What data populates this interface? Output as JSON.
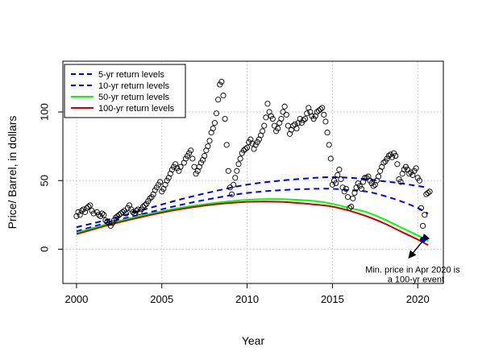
{
  "chart_data": {
    "type": "scatter",
    "title": "",
    "xlabel": "Year",
    "ylabel": "Price/ Barrel, in dollars",
    "xlim": [
      1999.2,
      2021.5
    ],
    "ylim": [
      -25,
      137
    ],
    "x_ticks": [
      2000,
      2005,
      2010,
      2015,
      2020
    ],
    "y_ticks": [
      0,
      50,
      100
    ],
    "grid": true,
    "legend_position": "top-left",
    "legend": [
      {
        "label": "5-yr return levels",
        "color": "#0000cc",
        "style": "dashed"
      },
      {
        "label": "10-yr return levels",
        "color": "#0000ff",
        "style": "dashed"
      },
      {
        "label": "50-yr return levels",
        "color": "#00ff00",
        "style": "solid"
      },
      {
        "label": "100-yr return levels",
        "color": "#cc0000",
        "style": "solid"
      }
    ],
    "points": [
      [
        2000.0,
        24
      ],
      [
        2000.1,
        27
      ],
      [
        2000.2,
        25
      ],
      [
        2000.3,
        28
      ],
      [
        2000.4,
        29
      ],
      [
        2000.5,
        27
      ],
      [
        2000.6,
        30
      ],
      [
        2000.7,
        31
      ],
      [
        2000.8,
        32
      ],
      [
        2000.9,
        28
      ],
      [
        2001.0,
        26
      ],
      [
        2001.2,
        27
      ],
      [
        2001.3,
        25
      ],
      [
        2001.4,
        24
      ],
      [
        2001.5,
        26
      ],
      [
        2001.6,
        25
      ],
      [
        2001.7,
        21
      ],
      [
        2001.8,
        20
      ],
      [
        2001.9,
        19
      ],
      [
        2002.0,
        17
      ],
      [
        2002.1,
        19
      ],
      [
        2002.2,
        21
      ],
      [
        2002.3,
        23
      ],
      [
        2002.4,
        24
      ],
      [
        2002.5,
        25
      ],
      [
        2002.6,
        26
      ],
      [
        2002.7,
        27
      ],
      [
        2002.8,
        28
      ],
      [
        2002.9,
        26
      ],
      [
        2003.0,
        30
      ],
      [
        2003.1,
        32
      ],
      [
        2003.2,
        29
      ],
      [
        2003.3,
        27
      ],
      [
        2003.4,
        26
      ],
      [
        2003.5,
        28
      ],
      [
        2003.6,
        29
      ],
      [
        2003.7,
        27
      ],
      [
        2003.8,
        29
      ],
      [
        2003.9,
        31
      ],
      [
        2004.0,
        32
      ],
      [
        2004.1,
        33
      ],
      [
        2004.2,
        35
      ],
      [
        2004.3,
        37
      ],
      [
        2004.4,
        38
      ],
      [
        2004.5,
        40
      ],
      [
        2004.6,
        43
      ],
      [
        2004.7,
        45
      ],
      [
        2004.8,
        47
      ],
      [
        2004.9,
        49
      ],
      [
        2005.0,
        42
      ],
      [
        2005.1,
        44
      ],
      [
        2005.2,
        47
      ],
      [
        2005.3,
        50
      ],
      [
        2005.4,
        52
      ],
      [
        2005.5,
        55
      ],
      [
        2005.6,
        58
      ],
      [
        2005.7,
        60
      ],
      [
        2005.8,
        62
      ],
      [
        2005.9,
        59
      ],
      [
        2006.0,
        57
      ],
      [
        2006.1,
        60
      ],
      [
        2006.3,
        63
      ],
      [
        2006.4,
        66
      ],
      [
        2006.5,
        68
      ],
      [
        2006.6,
        70
      ],
      [
        2006.7,
        72
      ],
      [
        2006.8,
        66
      ],
      [
        2006.9,
        60
      ],
      [
        2007.0,
        55
      ],
      [
        2007.1,
        57
      ],
      [
        2007.2,
        60
      ],
      [
        2007.3,
        63
      ],
      [
        2007.4,
        65
      ],
      [
        2007.5,
        68
      ],
      [
        2007.6,
        72
      ],
      [
        2007.7,
        75
      ],
      [
        2007.8,
        79
      ],
      [
        2007.9,
        85
      ],
      [
        2008.0,
        88
      ],
      [
        2008.1,
        92
      ],
      [
        2008.2,
        99
      ],
      [
        2008.3,
        109
      ],
      [
        2008.4,
        120
      ],
      [
        2008.5,
        122
      ],
      [
        2008.6,
        112
      ],
      [
        2008.7,
        95
      ],
      [
        2008.8,
        76
      ],
      [
        2008.9,
        57
      ],
      [
        2009.0,
        45
      ],
      [
        2009.1,
        40
      ],
      [
        2009.2,
        47
      ],
      [
        2009.3,
        52
      ],
      [
        2009.4,
        57
      ],
      [
        2009.5,
        62
      ],
      [
        2009.6,
        66
      ],
      [
        2009.7,
        70
      ],
      [
        2009.8,
        72
      ],
      [
        2009.9,
        73
      ],
      [
        2010.0,
        74
      ],
      [
        2010.1,
        78
      ],
      [
        2010.2,
        80
      ],
      [
        2010.3,
        77
      ],
      [
        2010.4,
        73
      ],
      [
        2010.5,
        76
      ],
      [
        2010.6,
        78
      ],
      [
        2010.7,
        80
      ],
      [
        2010.8,
        83
      ],
      [
        2010.9,
        86
      ],
      [
        2011.0,
        90
      ],
      [
        2011.1,
        96
      ],
      [
        2011.2,
        106
      ],
      [
        2011.3,
        100
      ],
      [
        2011.4,
        97
      ],
      [
        2011.5,
        95
      ],
      [
        2011.6,
        90
      ],
      [
        2011.7,
        86
      ],
      [
        2011.8,
        88
      ],
      [
        2011.9,
        92
      ],
      [
        2012.0,
        95
      ],
      [
        2012.1,
        100
      ],
      [
        2012.2,
        104
      ],
      [
        2012.3,
        98
      ],
      [
        2012.4,
        90
      ],
      [
        2012.5,
        84
      ],
      [
        2012.6,
        87
      ],
      [
        2012.7,
        90
      ],
      [
        2012.8,
        91
      ],
      [
        2012.9,
        88
      ],
      [
        2013.0,
        92
      ],
      [
        2013.1,
        95
      ],
      [
        2013.2,
        92
      ],
      [
        2013.3,
        94
      ],
      [
        2013.4,
        95
      ],
      [
        2013.5,
        99
      ],
      [
        2013.6,
        103
      ],
      [
        2013.7,
        100
      ],
      [
        2013.8,
        97
      ],
      [
        2013.9,
        95
      ],
      [
        2014.0,
        97
      ],
      [
        2014.1,
        100
      ],
      [
        2014.2,
        101
      ],
      [
        2014.3,
        102
      ],
      [
        2014.4,
        103
      ],
      [
        2014.5,
        98
      ],
      [
        2014.6,
        93
      ],
      [
        2014.7,
        85
      ],
      [
        2014.8,
        76
      ],
      [
        2014.9,
        66
      ],
      [
        2015.0,
        47
      ],
      [
        2015.1,
        50
      ],
      [
        2015.2,
        48
      ],
      [
        2015.3,
        54
      ],
      [
        2015.4,
        58
      ],
      [
        2015.5,
        51
      ],
      [
        2015.6,
        45
      ],
      [
        2015.7,
        42
      ],
      [
        2015.8,
        44
      ],
      [
        2015.9,
        38
      ],
      [
        2016.0,
        30
      ],
      [
        2016.1,
        31
      ],
      [
        2016.2,
        37
      ],
      [
        2016.3,
        41
      ],
      [
        2016.4,
        45
      ],
      [
        2016.5,
        48
      ],
      [
        2016.6,
        46
      ],
      [
        2016.7,
        44
      ],
      [
        2016.8,
        49
      ],
      [
        2016.9,
        52
      ],
      [
        2017.0,
        52
      ],
      [
        2017.1,
        53
      ],
      [
        2017.2,
        50
      ],
      [
        2017.3,
        48
      ],
      [
        2017.4,
        46
      ],
      [
        2017.5,
        47
      ],
      [
        2017.6,
        50
      ],
      [
        2017.7,
        53
      ],
      [
        2017.8,
        57
      ],
      [
        2017.9,
        60
      ],
      [
        2018.0,
        63
      ],
      [
        2018.1,
        64
      ],
      [
        2018.2,
        66
      ],
      [
        2018.3,
        68
      ],
      [
        2018.4,
        69
      ],
      [
        2018.5,
        67
      ],
      [
        2018.6,
        70
      ],
      [
        2018.7,
        68
      ],
      [
        2018.8,
        62
      ],
      [
        2018.9,
        51
      ],
      [
        2019.0,
        49
      ],
      [
        2019.1,
        55
      ],
      [
        2019.2,
        58
      ],
      [
        2019.3,
        60
      ],
      [
        2019.4,
        58
      ],
      [
        2019.5,
        55
      ],
      [
        2019.6,
        56
      ],
      [
        2019.7,
        54
      ],
      [
        2019.8,
        57
      ],
      [
        2019.9,
        59
      ],
      [
        2020.0,
        52
      ],
      [
        2020.1,
        50
      ],
      [
        2020.2,
        30
      ],
      [
        2020.3,
        17
      ],
      [
        2020.4,
        25
      ],
      [
        2020.5,
        40
      ],
      [
        2020.6,
        41
      ],
      [
        2020.7,
        42
      ]
    ],
    "series": [
      {
        "name": "5-yr return levels",
        "color": "#0000cc",
        "style": "dashed",
        "x": [
          2000,
          2002,
          2004,
          2006,
          2008,
          2010,
          2012,
          2014,
          2015,
          2016,
          2017,
          2018,
          2019,
          2020,
          2020.6
        ],
        "y": [
          16,
          22,
          29,
          36,
          42,
          47,
          50,
          52,
          52.5,
          52,
          51,
          49.5,
          48,
          46,
          45
        ]
      },
      {
        "name": "10-yr return levels",
        "color": "#0000ff",
        "style": "dashed",
        "x": [
          2000,
          2002,
          2004,
          2006,
          2008,
          2010,
          2012,
          2014,
          2015,
          2016,
          2017,
          2018,
          2019,
          2020,
          2020.6
        ],
        "y": [
          13,
          20,
          26,
          32,
          37,
          41,
          43,
          44,
          44,
          43,
          42,
          39,
          35,
          30,
          26
        ]
      },
      {
        "name": "50-yr return levels",
        "color": "#00ff00",
        "style": "solid",
        "x": [
          2000,
          2002,
          2004,
          2006,
          2008,
          2010,
          2012,
          2014,
          2015,
          2016,
          2017,
          2018,
          2019,
          2020,
          2020.6
        ],
        "y": [
          12,
          19,
          25,
          30,
          33.5,
          36,
          36.5,
          35,
          33,
          30,
          27,
          22,
          16,
          10,
          6
        ]
      },
      {
        "name": "100-yr return levels",
        "color": "#cc0000",
        "style": "solid",
        "x": [
          2000,
          2002,
          2004,
          2006,
          2008,
          2010,
          2012,
          2014,
          2015,
          2016,
          2017,
          2018,
          2019,
          2020,
          2020.6
        ],
        "y": [
          11,
          18,
          24,
          29,
          32.5,
          34.5,
          34.5,
          32.5,
          31,
          28,
          24,
          19,
          13,
          7,
          3
        ]
      }
    ],
    "highlight_point": {
      "x": 2020.3,
      "y": 7,
      "color": "#000099"
    },
    "annotation": {
      "lines": [
        "Min. price in Apr 2020 is",
        "a 100-yr event"
      ],
      "anchor_x": 2019.7,
      "anchor_y": -17
    },
    "arrow": {
      "from": [
        2019.5,
        -6
      ],
      "to": [
        2020.3,
        6
      ]
    }
  }
}
